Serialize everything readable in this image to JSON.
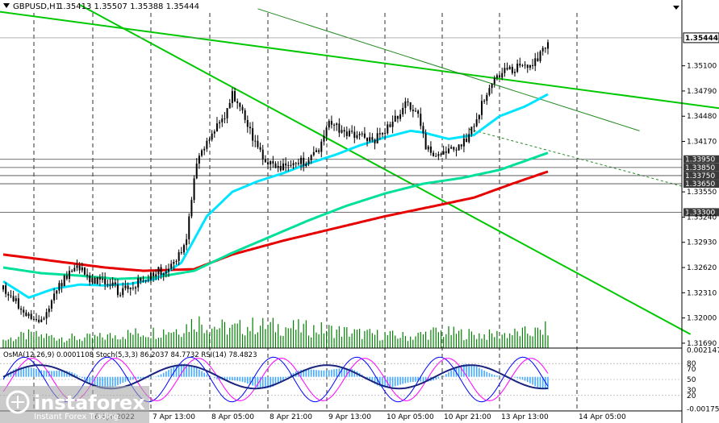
{
  "header": {
    "symbol_timeframe": "GBPUSD,H1",
    "ohlc": "1.35413 1.35507 1.35388 1.35444"
  },
  "chart_data": {
    "type": "candlestick",
    "symbol": "GBPUSD",
    "timeframe": "H1",
    "ylim": [
      1.3163,
      1.3575
    ],
    "y_ticks": [
      "1.35100",
      "1.34790",
      "1.34480",
      "1.34170",
      "1.33550",
      "1.33240",
      "1.32930",
      "1.32620",
      "1.32310",
      "1.32000",
      "1.31690"
    ],
    "current_price": "1.35444",
    "level_labels": [
      "1.33950",
      "1.33850",
      "1.33750",
      "1.33650",
      "1.33300"
    ],
    "levels": [
      1.3395,
      1.3385,
      1.3375,
      1.3365,
      1.333
    ],
    "x_ticks": [
      "6 Apr 2022",
      "7 Apr 13:00",
      "8 Apr 05:00",
      "8 Apr 21:00",
      "9 Apr 13:00",
      "10 Apr 05:00",
      "10 Apr 21:00",
      "13 Apr 13:00",
      "14 Apr 05:00"
    ],
    "price_path": [
      [
        0,
        1.3235
      ],
      [
        6,
        1.3215
      ],
      [
        10,
        1.3205
      ],
      [
        14,
        1.3195
      ],
      [
        18,
        1.3215
      ],
      [
        24,
        1.325
      ],
      [
        30,
        1.3262
      ],
      [
        34,
        1.3245
      ],
      [
        38,
        1.325
      ],
      [
        42,
        1.3242
      ],
      [
        46,
        1.323
      ],
      [
        50,
        1.3238
      ],
      [
        56,
        1.325
      ],
      [
        60,
        1.3255
      ],
      [
        64,
        1.3262
      ],
      [
        68,
        1.3268
      ],
      [
        72,
        1.33
      ],
      [
        74,
        1.335
      ],
      [
        76,
        1.3395
      ],
      [
        80,
        1.342
      ],
      [
        86,
        1.344
      ],
      [
        90,
        1.3475
      ],
      [
        94,
        1.345
      ],
      [
        98,
        1.342
      ],
      [
        102,
        1.3395
      ],
      [
        106,
        1.3385
      ],
      [
        112,
        1.3388
      ],
      [
        118,
        1.3392
      ],
      [
        124,
        1.341
      ],
      [
        128,
        1.344
      ],
      [
        134,
        1.3428
      ],
      [
        140,
        1.3425
      ],
      [
        146,
        1.342
      ],
      [
        150,
        1.343
      ],
      [
        154,
        1.3445
      ],
      [
        158,
        1.3462
      ],
      [
        163,
        1.3455
      ],
      [
        166,
        1.3408
      ],
      [
        170,
        1.3395
      ],
      [
        174,
        1.3402
      ],
      [
        178,
        1.341
      ],
      [
        182,
        1.342
      ],
      [
        186,
        1.3445
      ],
      [
        190,
        1.348
      ],
      [
        194,
        1.35
      ],
      [
        200,
        1.3505
      ],
      [
        206,
        1.351
      ],
      [
        210,
        1.3515
      ],
      [
        214,
        1.3544
      ]
    ],
    "ma_short_path": [
      [
        0,
        1.3245
      ],
      [
        10,
        1.3225
      ],
      [
        20,
        1.3236
      ],
      [
        30,
        1.3241
      ],
      [
        40,
        1.324
      ],
      [
        50,
        1.3242
      ],
      [
        60,
        1.3248
      ],
      [
        70,
        1.3268
      ],
      [
        80,
        1.3325
      ],
      [
        90,
        1.3355
      ],
      [
        100,
        1.3368
      ],
      [
        110,
        1.3378
      ],
      [
        120,
        1.339
      ],
      [
        130,
        1.34
      ],
      [
        140,
        1.3412
      ],
      [
        150,
        1.3422
      ],
      [
        160,
        1.343
      ],
      [
        165,
        1.3428
      ],
      [
        175,
        1.342
      ],
      [
        185,
        1.3425
      ],
      [
        195,
        1.3448
      ],
      [
        205,
        1.346
      ],
      [
        214,
        1.3475
      ]
    ],
    "ma_mid_path": [
      [
        0,
        1.3262
      ],
      [
        15,
        1.3255
      ],
      [
        30,
        1.3252
      ],
      [
        45,
        1.3248
      ],
      [
        60,
        1.325
      ],
      [
        75,
        1.3258
      ],
      [
        90,
        1.328
      ],
      [
        105,
        1.33
      ],
      [
        120,
        1.332
      ],
      [
        135,
        1.3338
      ],
      [
        150,
        1.3353
      ],
      [
        165,
        1.3365
      ],
      [
        180,
        1.3372
      ],
      [
        195,
        1.3382
      ],
      [
        205,
        1.3393
      ],
      [
        214,
        1.3403
      ]
    ],
    "ma_long_path": [
      [
        0,
        1.3278
      ],
      [
        20,
        1.327
      ],
      [
        40,
        1.3262
      ],
      [
        55,
        1.3258
      ],
      [
        75,
        1.326
      ],
      [
        90,
        1.3278
      ],
      [
        110,
        1.3295
      ],
      [
        130,
        1.331
      ],
      [
        150,
        1.3325
      ],
      [
        170,
        1.3338
      ],
      [
        185,
        1.3348
      ],
      [
        200,
        1.3365
      ],
      [
        214,
        1.338
      ]
    ],
    "channel_lines": [
      {
        "from": [
          -10,
          1.358
        ],
        "to": [
          300,
          1.345
        ],
        "color": "#00c800"
      },
      {
        "from": [
          30,
          1.3585
        ],
        "to": [
          270,
          1.318
        ],
        "color": "#00c800"
      },
      {
        "from": [
          100,
          1.358
        ],
        "to": [
          250,
          1.343
        ],
        "color": "#228b22"
      }
    ],
    "volume_path": [
      [
        0,
        0.25
      ],
      [
        10,
        0.4
      ],
      [
        20,
        0.35
      ],
      [
        30,
        0.3
      ],
      [
        40,
        0.35
      ],
      [
        50,
        0.45
      ],
      [
        60,
        0.5
      ],
      [
        70,
        0.6
      ],
      [
        76,
        0.85
      ],
      [
        80,
        0.7
      ],
      [
        90,
        0.6
      ],
      [
        100,
        0.7
      ],
      [
        110,
        0.65
      ],
      [
        120,
        0.6
      ],
      [
        130,
        0.55
      ],
      [
        140,
        0.45
      ],
      [
        150,
        0.4
      ],
      [
        160,
        0.35
      ],
      [
        170,
        0.5
      ],
      [
        180,
        0.45
      ],
      [
        190,
        0.4
      ],
      [
        200,
        0.45
      ],
      [
        210,
        0.5
      ],
      [
        214,
        0.6
      ]
    ],
    "indicator_label": "OsMA(12,26,9) 0.0001108  Stoch(5,3,3) 86.2037 84.7732  RSI(14) 78.4823",
    "indicator_ticks": [
      "0.0021470",
      "80",
      "50",
      "20",
      "-0.0017599"
    ],
    "legend_right_ticks": [
      "70",
      "30"
    ],
    "colors": {
      "candle": "#000000",
      "volume": "#008000",
      "ma_short": "#00e5ff",
      "ma_mid": "#00e09a",
      "ma_long": "#e60000",
      "channel": "#00d200",
      "osma": "#44aaff",
      "stoch_main": "#0000ff",
      "stoch_signal": "#ff00ff",
      "rsi": "#1a237e",
      "level_box": "#3a3a3a"
    }
  },
  "watermark": {
    "brand": "instaforex",
    "tagline": "Instant Forex Trading"
  }
}
